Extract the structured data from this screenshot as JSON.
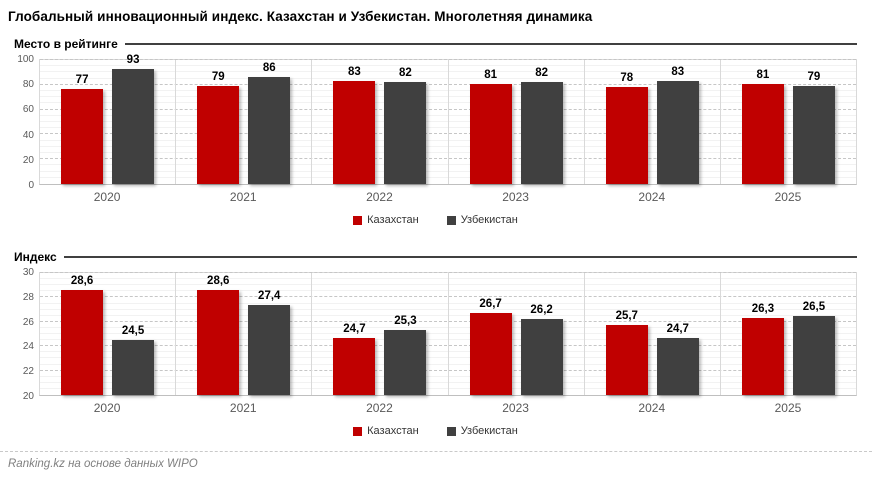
{
  "page": {
    "title": "Глобальный инновационный индекс. Казахстан и Узбекистан. Многолетняя динамика",
    "footer": "Ranking.kz на основе данных WIPO"
  },
  "colors": {
    "kazakhstan_red": "#C00000",
    "uzbekistan_gray": "#404040",
    "major_gridline": "#C6C6C6",
    "minor_gridline": "#F2F2F2",
    "plot_border": "#D9D9D9",
    "axis_text": "#595959",
    "section_rule": "#404040",
    "footer_text": "#7F7F7F"
  },
  "legend": [
    {
      "label": "Казахстан",
      "color": "#C00000"
    },
    {
      "label": "Узбекистан",
      "color": "#404040"
    }
  ],
  "chart_data": [
    {
      "type": "bar",
      "title": "Место в рейтинге",
      "xlabel": "",
      "ylabel": "",
      "categories": [
        "2020",
        "2021",
        "2022",
        "2023",
        "2024",
        "2025"
      ],
      "series": [
        {
          "name": "Казахстан",
          "color": "#C00000",
          "values": [
            77,
            79,
            83,
            81,
            78,
            81
          ],
          "labels": [
            "77",
            "79",
            "83",
            "81",
            "78",
            "81"
          ]
        },
        {
          "name": "Узбекистан",
          "color": "#404040",
          "values": [
            93,
            86,
            82,
            82,
            83,
            79
          ],
          "labels": [
            "93",
            "86",
            "82",
            "82",
            "83",
            "79"
          ]
        }
      ],
      "ylim": [
        0,
        100
      ],
      "ytick_step": 20,
      "minor_step": 5,
      "grid": true,
      "legend_position": "bottom"
    },
    {
      "type": "bar",
      "title": "Индекс",
      "xlabel": "",
      "ylabel": "",
      "categories": [
        "2020",
        "2021",
        "2022",
        "2023",
        "2024",
        "2025"
      ],
      "series": [
        {
          "name": "Казахстан",
          "color": "#C00000",
          "values": [
            28.6,
            28.6,
            24.7,
            26.7,
            25.7,
            26.3
          ],
          "labels": [
            "28,6",
            "28,6",
            "24,7",
            "26,7",
            "25,7",
            "26,3"
          ]
        },
        {
          "name": "Узбекистан",
          "color": "#404040",
          "values": [
            24.5,
            27.4,
            25.3,
            26.2,
            24.7,
            26.5
          ],
          "labels": [
            "24,5",
            "27,4",
            "25,3",
            "26,2",
            "24,7",
            "26,5"
          ]
        }
      ],
      "ylim": [
        20,
        30
      ],
      "ytick_step": 2,
      "minor_step": 0.5,
      "grid": true,
      "legend_position": "bottom"
    }
  ]
}
